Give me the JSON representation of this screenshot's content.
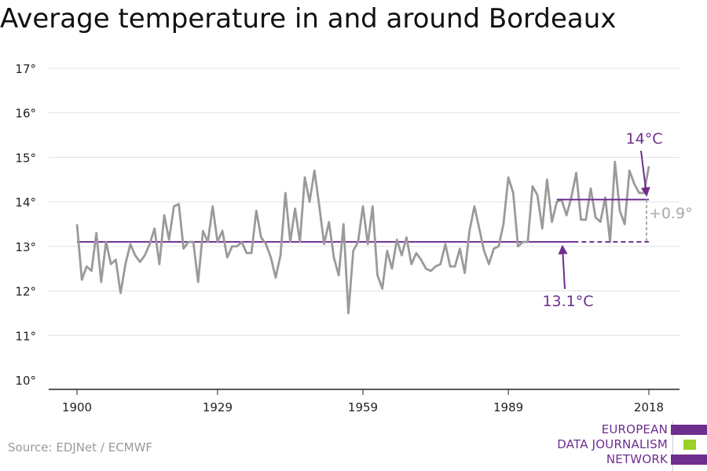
{
  "title": "Average temperature in and around Bordeaux",
  "source": "Source: EDJNet / ECMWF",
  "logo": {
    "lines": [
      "EUROPEAN",
      "DATA JOURNALISM",
      "NETWORK"
    ],
    "colors": [
      "#6e2e8e",
      "#9bd126",
      "#6e2e8e"
    ]
  },
  "colors": {
    "series": "#9a9a9a",
    "accent": "#6e2e8e",
    "grid": "#e0e0e0",
    "axis": "#222222"
  },
  "chart_data": {
    "type": "line",
    "title": "Average temperature in and around Bordeaux",
    "xlabel": "",
    "ylabel": "",
    "xlim": [
      1900,
      2018
    ],
    "ylim": [
      10,
      17
    ],
    "x_ticks": [
      1900,
      1929,
      1959,
      1989,
      2018
    ],
    "y_ticks": [
      10,
      11,
      12,
      13,
      14,
      15,
      16,
      17
    ],
    "y_tick_labels": [
      "10°",
      "11°",
      "12°",
      "13°",
      "14°",
      "15°",
      "16°",
      "17°"
    ],
    "grid": true,
    "series": [
      {
        "x": [
          1900,
          1901,
          1902,
          1903,
          1904,
          1905,
          1906,
          1907,
          1908,
          1909,
          1910,
          1911,
          1912,
          1913,
          1914,
          1915,
          1916,
          1917,
          1918,
          1919,
          1920,
          1921,
          1922,
          1923,
          1924,
          1925,
          1926,
          1927,
          1928,
          1929,
          1930,
          1931,
          1932,
          1933,
          1934,
          1935,
          1936,
          1937,
          1938,
          1939,
          1940,
          1941,
          1942,
          1943,
          1944,
          1945,
          1946,
          1947,
          1948,
          1949,
          1950,
          1951,
          1952,
          1953,
          1954,
          1955,
          1956,
          1957,
          1958,
          1959,
          1960,
          1961,
          1962,
          1963,
          1964,
          1965,
          1966,
          1967,
          1968,
          1969,
          1970,
          1971,
          1972,
          1973,
          1974,
          1975,
          1976,
          1977,
          1978,
          1979,
          1980,
          1981,
          1982,
          1983,
          1984,
          1985,
          1986,
          1987,
          1988,
          1989,
          1990,
          1991,
          1992,
          1993,
          1994,
          1995,
          1996,
          1997,
          1998,
          1999,
          2000,
          2001,
          2002,
          2003,
          2004,
          2005,
          2006,
          2007,
          2008,
          2009,
          2010,
          2011,
          2012,
          2013,
          2014,
          2015,
          2016,
          2017,
          2018
        ],
        "values": [
          13.5,
          12.25,
          12.55,
          12.45,
          13.3,
          12.2,
          13.1,
          12.6,
          12.7,
          11.95,
          12.6,
          13.05,
          12.8,
          12.65,
          12.8,
          13.05,
          13.4,
          12.6,
          13.7,
          13.15,
          13.9,
          13.95,
          12.95,
          13.1,
          13.1,
          12.2,
          13.35,
          13.1,
          13.9,
          13.1,
          13.35,
          12.75,
          13.0,
          13.0,
          13.1,
          12.85,
          12.85,
          13.8,
          13.2,
          13.05,
          12.75,
          12.3,
          12.8,
          14.2,
          13.1,
          13.85,
          13.1,
          14.55,
          14.0,
          14.7,
          13.9,
          13.05,
          13.55,
          12.75,
          12.35,
          13.5,
          11.5,
          12.9,
          13.1,
          13.9,
          13.05,
          13.9,
          12.35,
          12.05,
          12.9,
          12.5,
          13.15,
          12.8,
          13.2,
          12.6,
          12.85,
          12.7,
          12.5,
          12.45,
          12.55,
          12.6,
          13.05,
          12.55,
          12.55,
          12.95,
          12.4,
          13.35,
          13.9,
          13.4,
          12.9,
          12.6,
          12.95,
          13.0,
          13.5,
          14.55,
          14.2,
          13.0,
          13.1,
          13.1,
          14.35,
          14.15,
          13.4,
          14.5,
          13.55,
          14.0,
          14.05,
          13.7,
          14.1,
          14.65,
          13.6,
          13.6,
          14.3,
          13.65,
          13.55,
          14.1,
          13.1,
          14.9,
          13.8,
          13.5,
          14.7,
          14.4,
          14.2,
          14.2,
          14.8
        ]
      }
    ],
    "reference_lines": [
      {
        "label": "13.1°C",
        "value": 13.1,
        "x_range": [
          1900,
          2018
        ]
      },
      {
        "label": "14°C",
        "value": 14.05,
        "x_range": [
          1999,
          2018
        ]
      }
    ],
    "annotations": [
      "14°C",
      "13.1°C",
      "+0.9°"
    ]
  }
}
